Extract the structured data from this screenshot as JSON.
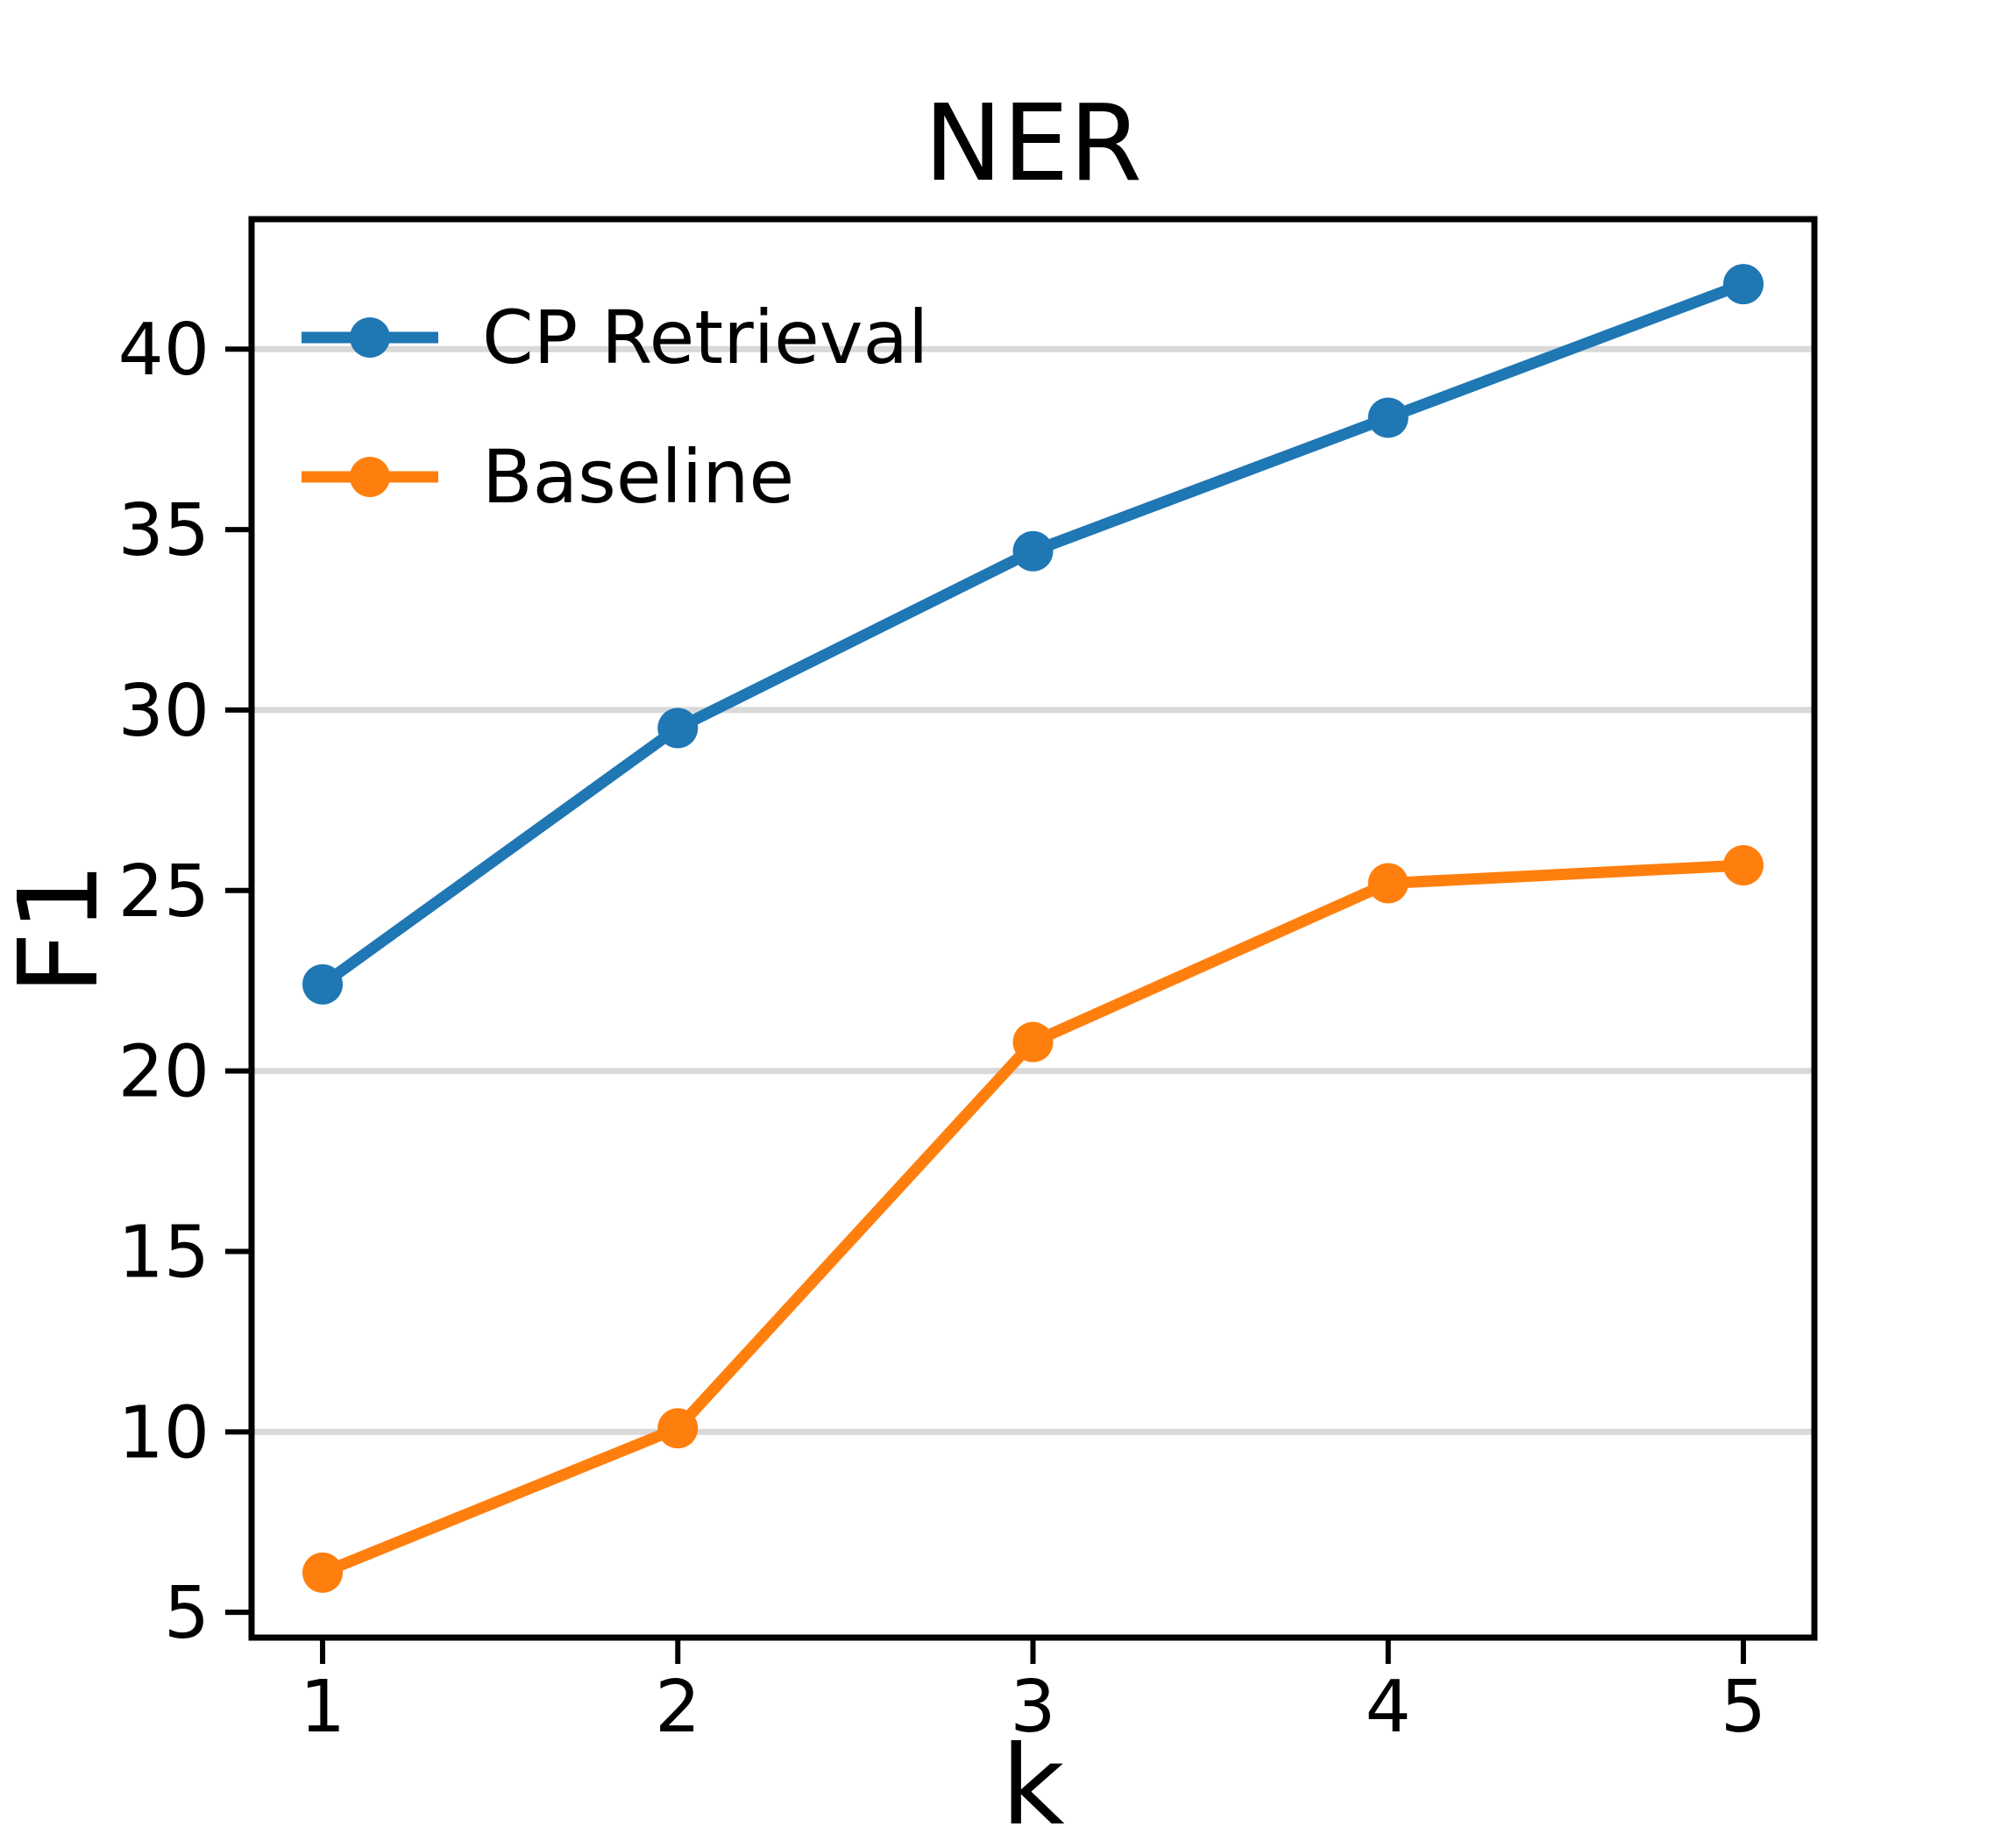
{
  "chart_data": {
    "type": "line",
    "title": "NER",
    "xlabel": "k",
    "ylabel": "F1",
    "x": [
      1,
      2,
      3,
      4,
      5
    ],
    "series": [
      {
        "name": "CP Retrieval",
        "color": "#1f77b4",
        "values": [
          22.4,
          29.5,
          34.4,
          38.1,
          41.8
        ]
      },
      {
        "name": "Baseline",
        "color": "#ff7f0e",
        "values": [
          6.1,
          10.1,
          20.8,
          25.2,
          25.7
        ]
      }
    ],
    "xlim": [
      0.8,
      5.2
    ],
    "ylim": [
      4.3,
      43.6
    ],
    "xticks": [
      "1",
      "2",
      "3",
      "4",
      "5"
    ],
    "xtick_values": [
      1,
      2,
      3,
      4,
      5
    ],
    "yticks": [
      "5",
      "10",
      "15",
      "20",
      "25",
      "30",
      "35",
      "40"
    ],
    "ytick_values": [
      5,
      10,
      15,
      20,
      25,
      30,
      35,
      40
    ],
    "gridlines_y": [
      10,
      20,
      30,
      40
    ],
    "grid_on": true,
    "grid_color": "#d9d9d9",
    "axis_color": "#000000",
    "background_color": "#ffffff",
    "legend_position": "upper-left",
    "legend_frame": false,
    "marker": "circle"
  }
}
